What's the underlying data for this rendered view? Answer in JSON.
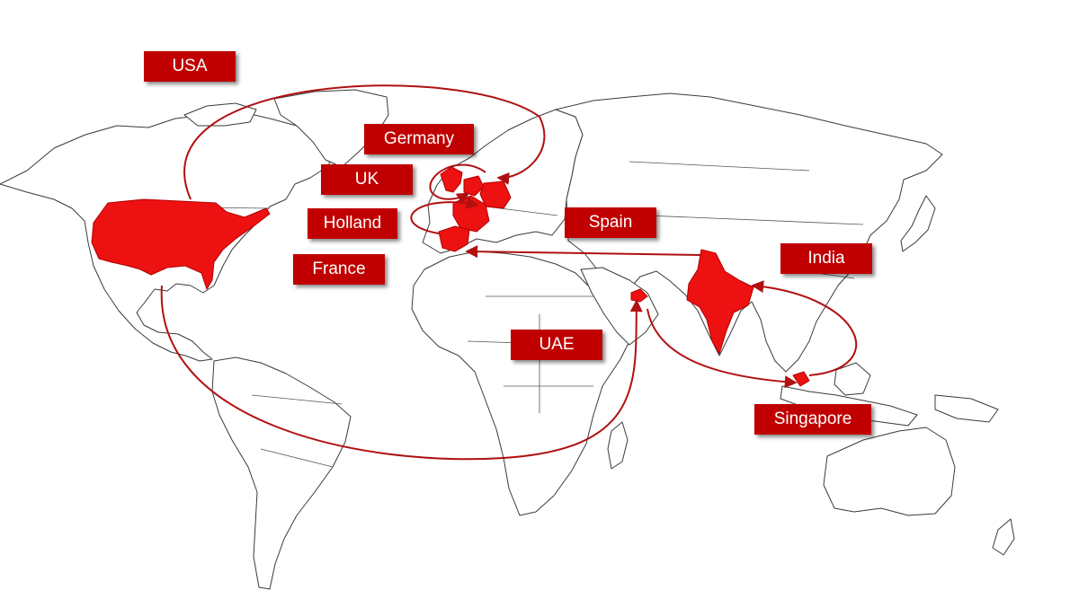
{
  "labels": {
    "usa": "USA",
    "germany": "Germany",
    "uk": "UK",
    "holland": "Holland",
    "france": "France",
    "spain": "Spain",
    "india": "India",
    "uae": "UAE",
    "singapore": "Singapore"
  },
  "colors": {
    "highlight": "#ee1111",
    "route": "#b01010",
    "label_bg": "#c00000",
    "label_text": "#ffffff"
  },
  "highlighted_countries": [
    "USA",
    "UK",
    "Holland",
    "Germany",
    "France",
    "Spain",
    "India",
    "UAE",
    "Singapore"
  ]
}
